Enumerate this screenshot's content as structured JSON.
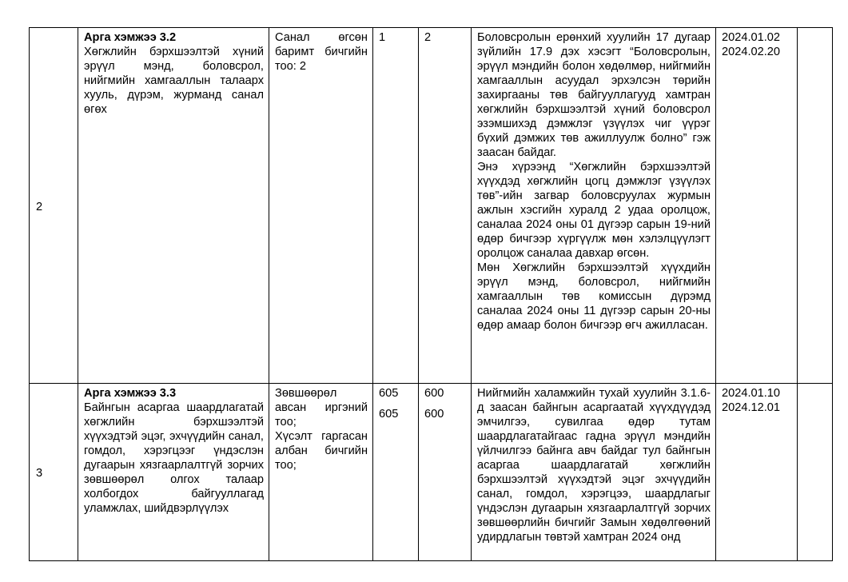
{
  "rows": [
    {
      "number": "2",
      "measure_title": "Арга хэмжээ 3.2",
      "measure_text": "Хөгжлийн бэрхшээлтэй хүний эрүүл мэнд, боловсрол, нийгмийн хамгааллын талаарх хууль, дүрэм, журманд санал өгөх",
      "indicator": "Санал өгсөн баримт бичгийн тоо: 2",
      "baseline": [
        "1"
      ],
      "target": [
        "2"
      ],
      "description": [
        "Боловсролын ерөнхий хуулийн 17 дугаар зүйлийн 17.9 дэх хэсэгт “Боловсролын, эрүүл мэндийн болон хөдөлмөр, нийгмийн хамгааллын асуудал эрхэлсэн төрийн захиргааны төв байгууллагууд хамтран хөгжлийн бэрхшээлтэй хүний боловсрол эзэмшихэд дэмжлэг үзүүлэх чиг үүрэг бүхий дэмжих төв ажиллуулж болно” гэж заасан байдаг.",
        "Энэ хүрээнд “Хөгжлийн бэрхшээлтэй хүүхдэд хөгжлийн цогц дэмжлэг үзүүлэх төв”-ийн загвар боловсруулах журмын ажлын хэсгийн хуралд 2 удаа оролцож, саналаа 2024 оны 01 дүгээр сарын 19-ний өдөр бичгээр хүргүүлж мөн хэлэлцүүлэгт оролцож саналаа давхар өгсөн.",
        "Мөн Хөгжлийн бэрхшээлтэй хүүхдийн эрүүл мэнд, боловсрол, нийгмийн хамгааллын төв комиссын дүрэмд саналаа 2024 оны 11 дүгээр сарын 20-ны өдөр амаар болон бичгээр өгч ажилласан."
      ],
      "dates": [
        "2024.01.02",
        "2024.02.20"
      ],
      "note": ""
    },
    {
      "number": "3",
      "measure_title": "Арга хэмжээ 3.3",
      "measure_text": "Байнгын асаргаа шаардлагатай хөгжлийн бэрхшээлтэй хүүхэдтэй эцэг, эхчүүдийн санал, гомдол, хэрэгцээг үндэслэн дугаарын хязгаарлалтгүй зорчих зөвшөөрөл олгох талаар холбогдох байгууллагад уламжлах, шийдвэрлүүлэх",
      "indicators": [
        "Зөвшөөрөл авсан иргэний тоо;",
        "Хүсэлт гаргасан албан бичгийн тоо;"
      ],
      "baseline": [
        "605",
        "605"
      ],
      "target": [
        "600",
        "600"
      ],
      "description": [
        "Нийгмийн халамжийн тухай хуулийн 3.1.6-д заасан байнгын асаргаатай хүүхдүүдэд эмчилгээ, сувилгаа өдөр тутам шаардлагатайгаас гадна эрүүл мэндийн үйлчилгээ байнга авч байдаг тул байнгын асаргаа шаардлагатай хөгжлийн бэрхшээлтэй хүүхэдтэй эцэг эхчүүдийн санал, гомдол, хэрэгцээ, шаардлагыг үндэслэн дугаарын хязгаарлалтгүй зорчих зөвшөөрлийн бичгийг Замын хөдөлгөөний удирдлагын төвтэй хамтран 2024 онд"
      ],
      "dates": [
        "2024.01.10",
        "2024.12.01"
      ],
      "note": ""
    }
  ]
}
